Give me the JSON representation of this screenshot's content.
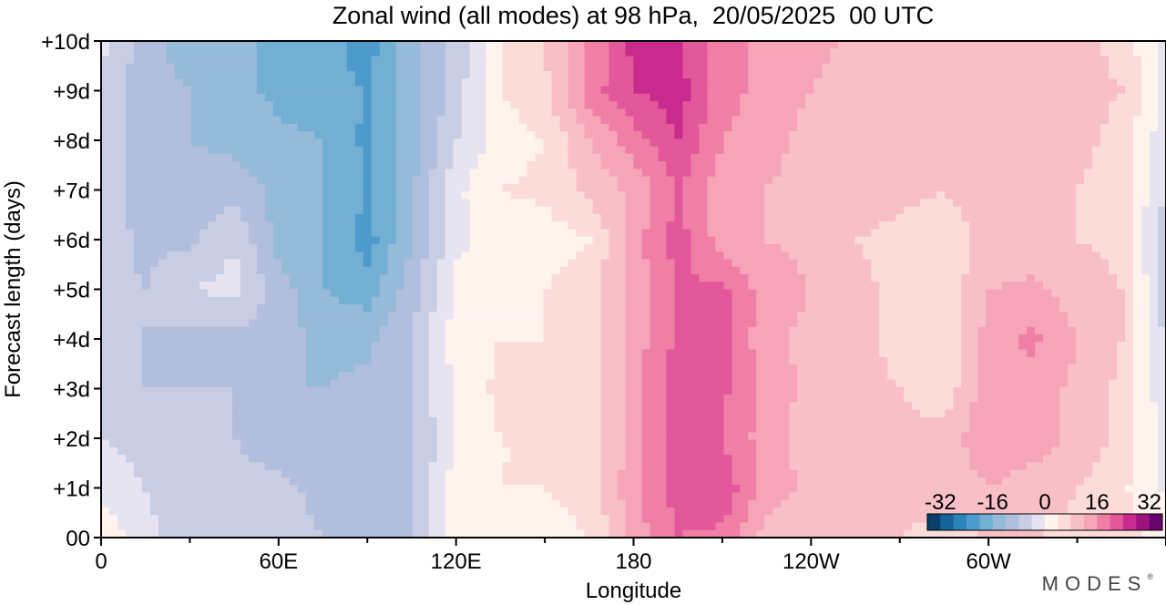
{
  "chart_data": {
    "type": "heatmap",
    "title": "Zonal wind (all modes) at 98 hPa,  20/05/2025  00 UTC",
    "xlabel": "Longitude",
    "ylabel": "Forecast length (days)",
    "x_tick_labels": [
      "0",
      "60E",
      "120E",
      "180",
      "120W",
      "60W"
    ],
    "y_tick_labels": [
      "00",
      "+1d",
      "+2d",
      "+3d",
      "+4d",
      "+5d",
      "+6d",
      "+7d",
      "+8d",
      "+9d",
      "+10d"
    ],
    "x_range_deg_east": [
      0,
      360
    ],
    "y_range_days": [
      0,
      10
    ],
    "colorbar": {
      "tick_labels": [
        "-32",
        "-16",
        "0",
        "16",
        "32"
      ],
      "levels": [
        -32,
        -28,
        -24,
        -20,
        -16,
        -12,
        -8,
        -4,
        0,
        4,
        8,
        12,
        16,
        20,
        24,
        28,
        32
      ],
      "colors": [
        "#0a3f6b",
        "#16639a",
        "#2a84bc",
        "#4d9bcc",
        "#73aed3",
        "#96bbd9",
        "#b1bedd",
        "#c9cde4",
        "#e6e4f0",
        "#fff3ee",
        "#fbdcd9",
        "#f8c0c6",
        "#f6a5b9",
        "#f07fa6",
        "#e3579b",
        "#c92a8e",
        "#9e137f",
        "#69066e"
      ]
    },
    "grid_longitudes_deg_east": [
      0,
      15,
      30,
      45,
      60,
      75,
      90,
      105,
      120,
      135,
      150,
      165,
      180,
      195,
      210,
      225,
      240,
      255,
      270,
      285,
      300,
      315,
      330,
      345,
      360
    ],
    "grid_days": [
      0,
      1,
      2,
      3,
      4,
      5,
      6,
      7,
      8,
      9,
      10
    ],
    "values_m_per_s": [
      [
        3,
        -3,
        -6,
        -6,
        -7,
        -8,
        -8,
        -8,
        2,
        4,
        3,
        4,
        14,
        20,
        19,
        10,
        10,
        8,
        8,
        7,
        8,
        8,
        7,
        5,
        3
      ],
      [
        -1,
        -4,
        -6,
        -7,
        -7,
        -9,
        -10,
        -9,
        2,
        4,
        4,
        5,
        15,
        22,
        23,
        14,
        11,
        9,
        9,
        9,
        12,
        10,
        8,
        5,
        -1
      ],
      [
        -4,
        -6,
        -7,
        -8,
        -10,
        -12,
        -12,
        -9,
        1,
        4,
        4,
        5,
        14,
        22,
        20,
        14,
        10,
        9,
        9,
        10,
        15,
        14,
        11,
        7,
        -2
      ],
      [
        -6,
        -8,
        -8,
        -8,
        -12,
        -12,
        -11,
        -8,
        1,
        5,
        5,
        5,
        14,
        22,
        21,
        14,
        11,
        10,
        8,
        5,
        15,
        14,
        11,
        7,
        -3
      ],
      [
        -7,
        -8,
        -9,
        -9,
        -10,
        -13,
        -13,
        -8,
        2,
        4,
        4,
        6,
        14,
        21,
        22,
        13,
        11,
        10,
        6,
        4,
        14,
        17,
        12,
        8,
        -5
      ],
      [
        -7,
        -8,
        -4,
        -3,
        -10,
        -16,
        -18,
        -10,
        1,
        3,
        4,
        6,
        14,
        20,
        21,
        14,
        12,
        9,
        7,
        5,
        12,
        13,
        10,
        8,
        -6
      ],
      [
        -6,
        -9,
        -9,
        -4,
        -14,
        -16,
        -22,
        -12,
        -1,
        2,
        2,
        4,
        14,
        22,
        14,
        12,
        11,
        8,
        7,
        6,
        9,
        9,
        8,
        7,
        -8
      ],
      [
        -7,
        -9,
        -10,
        -10,
        -13,
        -16,
        -20,
        -13,
        -1,
        4,
        5,
        9,
        13,
        20,
        14,
        12,
        11,
        10,
        9,
        8,
        10,
        9,
        8,
        6,
        -4
      ],
      [
        -5,
        -10,
        -12,
        -13,
        -15,
        -16,
        -21,
        -14,
        -4,
        2,
        4,
        12,
        18,
        24,
        16,
        13,
        11,
        10,
        9,
        9,
        10,
        9,
        9,
        7,
        -3
      ],
      [
        -4,
        -11,
        -12,
        -15,
        -17,
        -19,
        -20,
        -14,
        -6,
        4,
        7,
        18,
        24,
        26,
        18,
        14,
        12,
        9,
        9,
        10,
        11,
        10,
        9,
        8,
        -2
      ],
      [
        -3,
        -10,
        -14,
        -15,
        -17,
        -18,
        -22,
        -13,
        -7,
        4,
        8,
        16,
        25,
        24,
        18,
        14,
        14,
        11,
        10,
        10,
        12,
        12,
        9,
        7,
        -2
      ]
    ]
  },
  "logo_text": "MODES",
  "logo_mark": "®"
}
